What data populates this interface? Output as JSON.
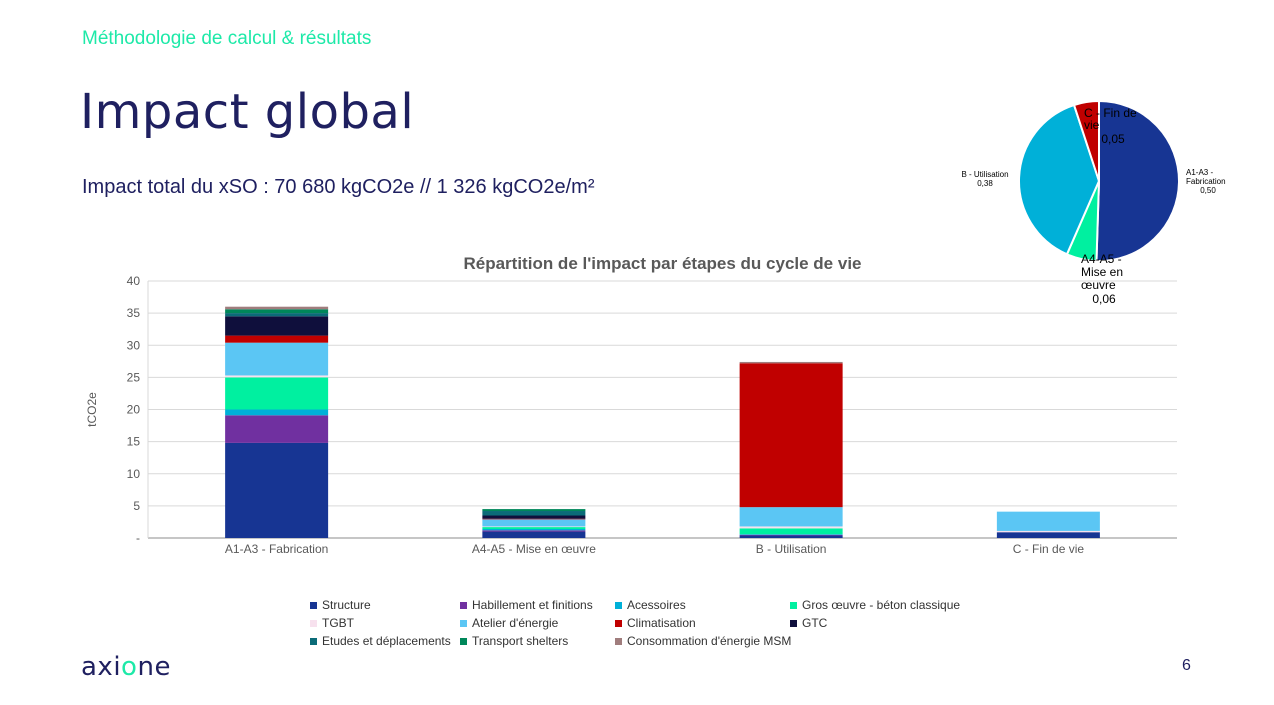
{
  "header": {
    "section_label": "Méthodologie de calcul & résultats",
    "title": "Impact global",
    "impact_total": "Impact total du xSO : 70 680 kgCO2e // 1 326 kgCO2e/m²"
  },
  "footer": {
    "logo_text_left": "axi",
    "logo_text_accent": "o",
    "logo_text_right": "ne",
    "page_number": "6"
  },
  "chart_data": [
    {
      "type": "bar",
      "stacked": true,
      "title": "Répartition de l'impact par étapes du cycle de vie",
      "xlabel": "",
      "ylabel": "tCO2e",
      "ylim": [
        0,
        40
      ],
      "yticks": [
        0,
        5,
        10,
        15,
        20,
        25,
        30,
        35,
        40
      ],
      "ytick_labels": [
        "-",
        "5",
        "10",
        "15",
        "20",
        "25",
        "30",
        "35",
        "40"
      ],
      "grid": true,
      "legend_position": "bottom",
      "categories": [
        "A1-A3 - Fabrication",
        "A4-A5 - Mise en œuvre",
        "B - Utilisation",
        "C - Fin de vie"
      ],
      "series": [
        {
          "name": "Structure",
          "color": "#173593",
          "values": [
            14.8,
            1.0,
            0.4,
            0.9
          ]
        },
        {
          "name": "Habillement et finitions",
          "color": "#7030a0",
          "values": [
            4.3,
            0.2,
            0.1,
            0.0
          ]
        },
        {
          "name": "Acessoires",
          "color": "#00b0d8",
          "values": [
            0.9,
            0.2,
            0.1,
            0.0
          ]
        },
        {
          "name": "Gros œuvre - béton classique",
          "color": "#00f0a0",
          "values": [
            5.0,
            0.3,
            0.9,
            0.0
          ]
        },
        {
          "name": "TGBT",
          "color": "#f7e1ee",
          "values": [
            0.3,
            0.1,
            0.3,
            0.2
          ]
        },
        {
          "name": "Atelier d'énergie",
          "color": "#5bc6f4",
          "values": [
            5.1,
            1.1,
            3.0,
            3.0
          ]
        },
        {
          "name": "Climatisation",
          "color": "#c00000",
          "values": [
            1.1,
            0.1,
            22.4,
            0.0
          ]
        },
        {
          "name": "GTC",
          "color": "#0f0f3c",
          "values": [
            3.0,
            0.5,
            0.0,
            0.0
          ]
        },
        {
          "name": "Etudes et déplacements",
          "color": "#0b6b78",
          "values": [
            0.5,
            0.7,
            0.0,
            0.0
          ]
        },
        {
          "name": "Transport shelters",
          "color": "#00875a",
          "values": [
            0.6,
            0.3,
            0.0,
            0.0
          ]
        },
        {
          "name": "Consommation d'énergie MSM",
          "color": "#a07d7d",
          "values": [
            0.4,
            0.0,
            0.2,
            0.0
          ]
        }
      ]
    },
    {
      "type": "pie",
      "title": "",
      "slices": [
        {
          "label": "A1-A3 - Fabrication",
          "value": 0.5,
          "value_label": "0,50",
          "color": "#173593"
        },
        {
          "label": "A4-A5 - Mise en œuvre",
          "value": 0.06,
          "value_label": "0,06",
          "color": "#00f0a0"
        },
        {
          "label": "B - Utilisation",
          "value": 0.38,
          "value_label": "0,38",
          "color": "#00b0d8"
        },
        {
          "label": "C - Fin de vie",
          "value": 0.05,
          "value_label": "0,05",
          "color": "#c00000"
        }
      ]
    }
  ]
}
